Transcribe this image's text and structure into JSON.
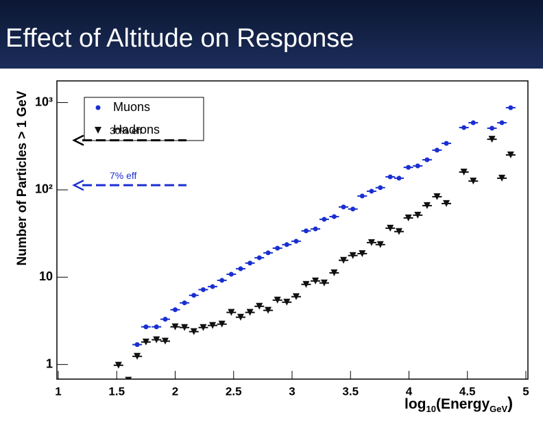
{
  "chart_data": {
    "type": "scatter",
    "title": "Effect of Altitude on Response",
    "y_label": "Number of Particles > 1 GeV",
    "x_label": [
      "log",
      "10",
      "(Energy",
      "GeV",
      ")"
    ],
    "xlim": [
      1,
      5
    ],
    "xticks": [
      1,
      1.5,
      2,
      2.5,
      3,
      3.5,
      4,
      4.5,
      5
    ],
    "ylim": [
      0.68,
      1770
    ],
    "log_y": true,
    "yticks": [
      1,
      10,
      {
        "value": 100,
        "label": "10²"
      },
      {
        "value": 1000,
        "label": "10³"
      }
    ],
    "series": [
      {
        "name": "Muons",
        "color": "#1a2fd0",
        "marker": "circle",
        "x": [
          1.675,
          1.75,
          1.84,
          1.915,
          2.0,
          2.08,
          2.16,
          2.24,
          2.32,
          2.4,
          2.48,
          2.56,
          2.64,
          2.72,
          2.795,
          2.875,
          2.955,
          3.035,
          3.12,
          3.2,
          3.275,
          3.36,
          3.44,
          3.52,
          3.6,
          3.68,
          3.755,
          3.84,
          3.915,
          3.995,
          4.075,
          4.155,
          4.24,
          4.32,
          4.47,
          4.55,
          4.71,
          4.795,
          4.87
        ],
        "values": [
          1.69,
          2.7,
          2.7,
          3.3,
          4.24,
          5.08,
          6.2,
          7.2,
          7.8,
          9.2,
          10.8,
          12.5,
          14.5,
          16.7,
          19,
          21.5,
          23.6,
          25.8,
          33.9,
          35.7,
          46,
          49.4,
          63.7,
          60.3,
          85,
          96.5,
          106,
          141,
          136,
          181,
          188,
          221,
          285,
          341,
          517,
          587,
          508,
          587,
          873
        ]
      },
      {
        "name": "Hadrons",
        "color": "#111111",
        "marker": "triangle",
        "x": [
          1.515,
          1.6,
          1.675,
          1.75,
          1.84,
          1.915,
          2.0,
          2.08,
          2.16,
          2.24,
          2.32,
          2.4,
          2.48,
          2.56,
          2.64,
          2.72,
          2.795,
          2.875,
          2.955,
          3.035,
          3.12,
          3.2,
          3.275,
          3.36,
          3.44,
          3.52,
          3.6,
          3.68,
          3.755,
          3.84,
          3.915,
          3.995,
          4.075,
          4.155,
          4.24,
          4.32,
          4.47,
          4.55,
          4.71,
          4.795,
          4.87
        ],
        "values": [
          0.98,
          0.66,
          1.24,
          1.81,
          1.92,
          1.85,
          2.7,
          2.65,
          2.38,
          2.65,
          2.8,
          2.9,
          3.95,
          3.48,
          3.95,
          4.64,
          4.17,
          5.46,
          5.17,
          5.98,
          8.27,
          9.05,
          8.58,
          11.2,
          15.6,
          17.7,
          18.6,
          24.9,
          23.6,
          36.4,
          33.3,
          47.7,
          51.3,
          66,
          83.5,
          69.7,
          160,
          126,
          380,
          136,
          251
        ]
      }
    ],
    "annotations": [
      {
        "text": "30% eff",
        "y": 370,
        "color": "#000000"
      },
      {
        "text": "7% eff",
        "y": 113,
        "color": "#1a2fd0"
      }
    ]
  }
}
